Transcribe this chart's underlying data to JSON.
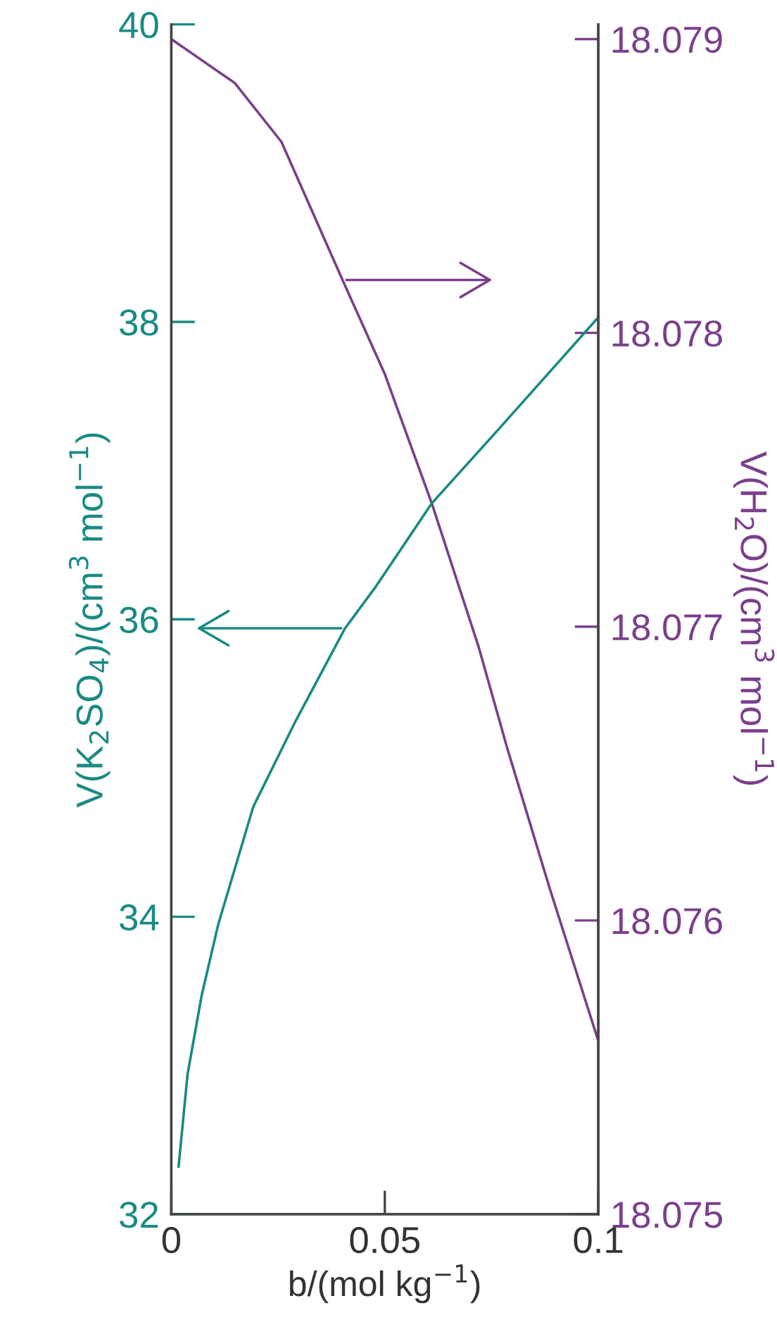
{
  "chart_data": {
    "type": "line",
    "xlabel": "b/(mol kg$^{−1}$)",
    "ylabel": "V(K$_{2}$SO$_{4}$)/(cm$^{3}$ mol$^{−1}$)",
    "y2label": "V(H$_{2}$O)/(cm$^{3}$ mol$^{−1}$)",
    "xlim": [
      0,
      0.1
    ],
    "xticks": [
      0,
      0.05,
      0.1
    ],
    "ylim": [
      32,
      40
    ],
    "yticks": [
      32,
      34,
      36,
      38,
      40
    ],
    "y2lim": [
      18.075,
      18.07905
    ],
    "y2ticks": [
      18.075,
      18.076,
      18.077,
      18.078,
      18.079
    ],
    "grid": false,
    "legend": false,
    "marker": "none",
    "line_style": "solid",
    "series": [
      {
        "color": "#1a8a84",
        "x": [
          0.0017,
          0.0038,
          0.0071,
          0.011,
          0.0192,
          0.029,
          0.0407,
          0.0479,
          0.061,
          0.0764,
          0.1
        ],
        "values": [
          32.32,
          32.94,
          33.47,
          33.95,
          34.74,
          35.31,
          35.94,
          36.22,
          36.78,
          37.27,
          38.03
        ]
      },
      {
        "color": "#7b3f8c",
        "axis": "y2",
        "x": [
          0,
          0.0149,
          0.0258,
          0.0401,
          0.05,
          0.061,
          0.072,
          0.0786,
          0.0886,
          0.1
        ],
        "values": [
          18.079,
          18.07885,
          18.07865,
          18.07818,
          18.07786,
          18.07742,
          18.07693,
          18.07659,
          18.07611,
          18.07559
        ]
      }
    ]
  }
}
